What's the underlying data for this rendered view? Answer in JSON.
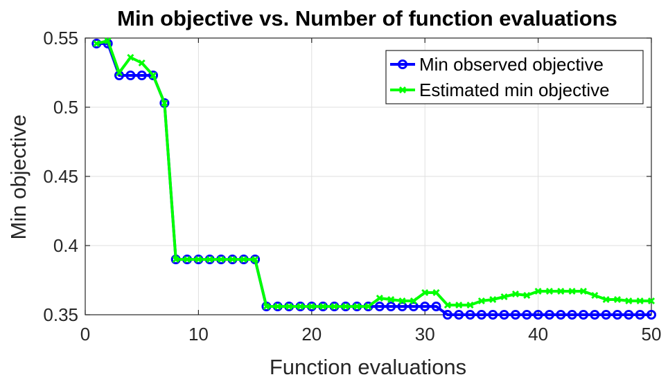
{
  "chart_data": {
    "type": "line",
    "title": "Min objective vs. Number of function evaluations",
    "xlabel": "Function evaluations",
    "ylabel": "Min objective",
    "xlim": [
      0,
      50
    ],
    "ylim": [
      0.35,
      0.55
    ],
    "xticks": [
      "0",
      "10",
      "20",
      "30",
      "40",
      "50"
    ],
    "yticks": [
      "0.35",
      "0.4",
      "0.45",
      "0.5",
      "0.55"
    ],
    "grid": true,
    "legend": "top-right",
    "x": [
      1,
      2,
      3,
      4,
      5,
      6,
      7,
      8,
      9,
      10,
      11,
      12,
      13,
      14,
      15,
      16,
      17,
      18,
      19,
      20,
      21,
      22,
      23,
      24,
      25,
      26,
      27,
      28,
      29,
      30,
      31,
      32,
      33,
      34,
      35,
      36,
      37,
      38,
      39,
      40,
      41,
      42,
      43,
      44,
      45,
      46,
      47,
      48,
      49,
      50
    ],
    "series": [
      {
        "name": "Min observed objective",
        "color": "#0000ff",
        "marker": "circle",
        "values": [
          0.546,
          0.546,
          0.523,
          0.523,
          0.523,
          0.523,
          0.503,
          0.39,
          0.39,
          0.39,
          0.39,
          0.39,
          0.39,
          0.39,
          0.39,
          0.356,
          0.356,
          0.356,
          0.356,
          0.356,
          0.356,
          0.356,
          0.356,
          0.356,
          0.356,
          0.356,
          0.356,
          0.356,
          0.356,
          0.356,
          0.356,
          0.35,
          0.35,
          0.35,
          0.35,
          0.35,
          0.35,
          0.35,
          0.35,
          0.35,
          0.35,
          0.35,
          0.35,
          0.35,
          0.35,
          0.35,
          0.35,
          0.35,
          0.35,
          0.35
        ]
      },
      {
        "name": "Estimated min objective",
        "color": "#00ff00",
        "marker": "x",
        "values": [
          0.546,
          0.548,
          0.525,
          0.536,
          0.532,
          0.523,
          0.503,
          0.39,
          0.39,
          0.39,
          0.39,
          0.39,
          0.39,
          0.39,
          0.39,
          0.356,
          0.356,
          0.356,
          0.356,
          0.356,
          0.356,
          0.356,
          0.356,
          0.356,
          0.356,
          0.362,
          0.361,
          0.36,
          0.36,
          0.366,
          0.366,
          0.357,
          0.357,
          0.357,
          0.36,
          0.361,
          0.363,
          0.365,
          0.364,
          0.367,
          0.367,
          0.367,
          0.367,
          0.367,
          0.364,
          0.361,
          0.361,
          0.36,
          0.36,
          0.36
        ]
      }
    ]
  }
}
